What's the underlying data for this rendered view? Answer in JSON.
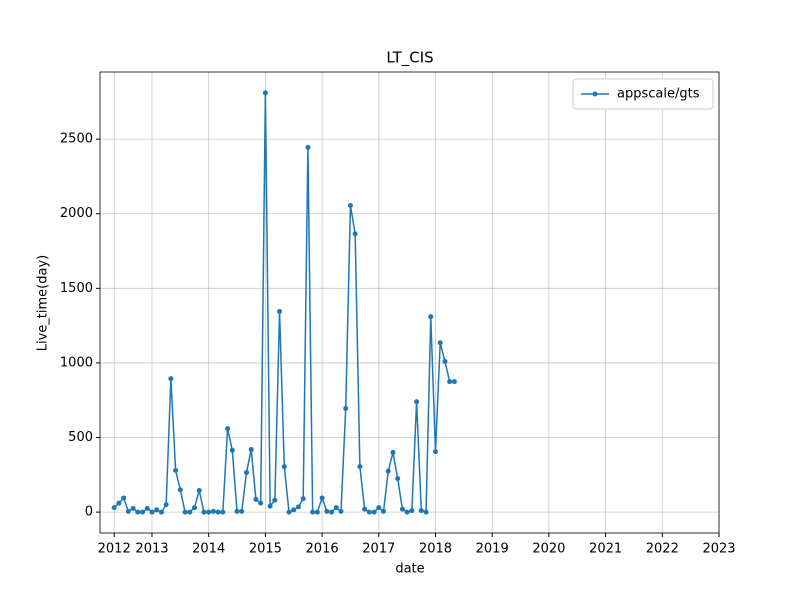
{
  "chart_data": {
    "type": "line",
    "title": "LT_CIS",
    "x_label": "date",
    "y_label": "Live_time(day)",
    "x": [
      "2012-05",
      "2012-06",
      "2012-07",
      "2012-08",
      "2012-09",
      "2012-10",
      "2012-11",
      "2012-12",
      "2013-01",
      "2013-02",
      "2013-03",
      "2013-04",
      "2013-05",
      "2013-06",
      "2013-07",
      "2013-08",
      "2013-09",
      "2013-10",
      "2013-11",
      "2013-12",
      "2014-01",
      "2014-02",
      "2014-03",
      "2014-04",
      "2014-05",
      "2014-06",
      "2014-07",
      "2014-08",
      "2014-09",
      "2014-10",
      "2014-11",
      "2014-12",
      "2015-01",
      "2015-02",
      "2015-03",
      "2015-04",
      "2015-05",
      "2015-06",
      "2015-07",
      "2015-08",
      "2015-09",
      "2015-10",
      "2015-11",
      "2015-12",
      "2016-01",
      "2016-02",
      "2016-03",
      "2016-04",
      "2016-05",
      "2016-06",
      "2016-07",
      "2016-08",
      "2016-09",
      "2016-10",
      "2016-11",
      "2016-12",
      "2017-01",
      "2017-02",
      "2017-03",
      "2017-04",
      "2017-05",
      "2017-06",
      "2017-07",
      "2017-08",
      "2017-09",
      "2017-10",
      "2017-11",
      "2017-12",
      "2018-01",
      "2018-02",
      "2018-03",
      "2018-04",
      "2018-05"
    ],
    "series": [
      {
        "name": "appscale/gts",
        "color": "#1f77b4",
        "values": [
          30,
          60,
          95,
          5,
          25,
          0,
          0,
          25,
          0,
          15,
          0,
          50,
          895,
          280,
          150,
          0,
          0,
          30,
          145,
          0,
          0,
          5,
          0,
          0,
          560,
          415,
          5,
          5,
          265,
          420,
          85,
          60,
          2810,
          40,
          80,
          1345,
          305,
          0,
          15,
          35,
          90,
          2445,
          0,
          0,
          95,
          5,
          0,
          30,
          5,
          695,
          2055,
          1865,
          305,
          20,
          0,
          0,
          30,
          5,
          275,
          400,
          225,
          20,
          0,
          10,
          740,
          10,
          0,
          1310,
          405,
          1135,
          1010,
          875,
          875
        ]
      }
    ],
    "xlim": [
      "2012-02",
      2023
    ],
    "xticks": [
      {
        "value": "2012-05",
        "label": "2012"
      },
      2013,
      2014,
      2015,
      2016,
      2017,
      2018,
      2019,
      2020,
      2021,
      2022,
      2023
    ],
    "ylim": [
      -140,
      2950
    ],
    "yticks": [
      0,
      500,
      1000,
      1500,
      2000,
      2500
    ],
    "grid": true,
    "legend": "upper right"
  }
}
